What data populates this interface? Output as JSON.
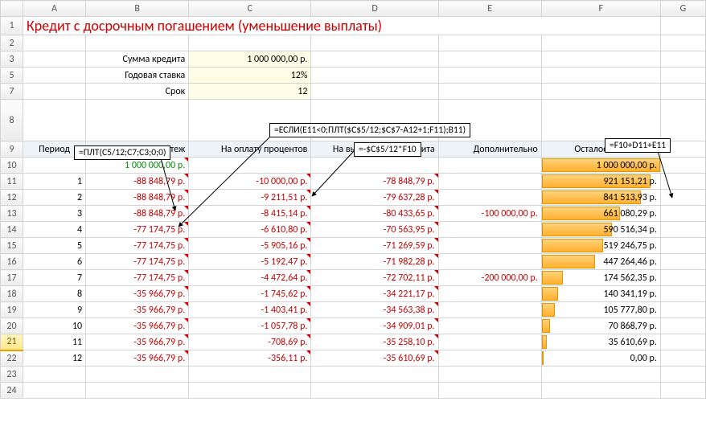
{
  "title": "Кредит с досрочным погашением (уменьшение выплаты)",
  "cols": [
    "A",
    "B",
    "C",
    "D",
    "E",
    "F",
    "G"
  ],
  "params": {
    "sum_label": "Сумма кредита",
    "sum_value": "1 000 000,00 р.",
    "rate_label": "Годовая ставка",
    "rate_value": "12%",
    "term_label": "Срок",
    "term_value": "12"
  },
  "headers": {
    "period": "Период",
    "payment": "Платеж",
    "interest": "На оплату процентов",
    "principal": "На выплату тела кредита",
    "extra": "Дополнительно",
    "remaining": "Осталось выплатить"
  },
  "initial": {
    "payment": "1 000 000,00 р.",
    "remaining": "1 000 000,00 р."
  },
  "rows": [
    {
      "n": "1",
      "pay": "-88 848,79 р.",
      "int": "-10 000,00 р.",
      "pri": "-78 848,79 р.",
      "ext": "",
      "rem": "921 151,21 р.",
      "bar": 0.921
    },
    {
      "n": "2",
      "pay": "-88 848,79 р.",
      "int": "-9 211,51 р.",
      "pri": "-79 637,28 р.",
      "ext": "",
      "rem": "841 513,93 р.",
      "bar": 0.842
    },
    {
      "n": "3",
      "pay": "-88 848,79 р.",
      "int": "-8 415,14 р.",
      "pri": "-80 433,65 р.",
      "ext": "-100 000,00 р.",
      "rem": "661 080,29 р.",
      "bar": 0.661
    },
    {
      "n": "4",
      "pay": "-77 174,75 р.",
      "int": "-6 610,80 р.",
      "pri": "-70 563,95 р.",
      "ext": "",
      "rem": "590 516,34 р.",
      "bar": 0.591
    },
    {
      "n": "5",
      "pay": "-77 174,75 р.",
      "int": "-5 905,16 р.",
      "pri": "-71 269,59 р.",
      "ext": "",
      "rem": "519 246,75 р.",
      "bar": 0.519
    },
    {
      "n": "6",
      "pay": "-77 174,75 р.",
      "int": "-5 192,47 р.",
      "pri": "-71 982,28 р.",
      "ext": "",
      "rem": "447 264,46 р.",
      "bar": 0.447
    },
    {
      "n": "7",
      "pay": "-77 174,75 р.",
      "int": "-4 472,64 р.",
      "pri": "-72 702,11 р.",
      "ext": "-200 000,00 р.",
      "rem": "174 562,35 р.",
      "bar": 0.175
    },
    {
      "n": "8",
      "pay": "-35 966,79 р.",
      "int": "-1 745,62 р.",
      "pri": "-34 221,17 р.",
      "ext": "",
      "rem": "140 341,19 р.",
      "bar": 0.14
    },
    {
      "n": "9",
      "pay": "-35 966,79 р.",
      "int": "-1 403,41 р.",
      "pri": "-34 563,38 р.",
      "ext": "",
      "rem": "105 777,80 р.",
      "bar": 0.106
    },
    {
      "n": "10",
      "pay": "-35 966,79 р.",
      "int": "-1 057,78 р.",
      "pri": "-34 909,01 р.",
      "ext": "",
      "rem": "70 868,79 р.",
      "bar": 0.071
    },
    {
      "n": "11",
      "pay": "-35 966,79 р.",
      "int": "-708,69 р.",
      "pri": "-35 258,10 р.",
      "ext": "",
      "rem": "35 610,69 р.",
      "bar": 0.036
    },
    {
      "n": "12",
      "pay": "-35 966,79 р.",
      "int": "-356,11 р.",
      "pri": "-35 610,69 р.",
      "ext": "",
      "rem": "0,00 р.",
      "bar": 0.0
    }
  ],
  "formulas": {
    "b11": "=ПЛТ(С5/12;С7;С3;0;0)",
    "b12": "=ЕСЛИ(E11<0;ПЛТ($C$5/12;$C$7-A12+1;F11);B11)",
    "c11": "=-$C$5/12*F10",
    "f11": "=F10+D11+E11"
  },
  "selected_row": "21",
  "colors": {
    "title": "#cc0000",
    "neg": "#cc0000",
    "green": "#008a00",
    "input_bg": "#fffde6",
    "hdr_bg": "#eef3f8",
    "bar_start": "#ffd27a",
    "bar_end": "#ffb030",
    "grid": "#d4d4d4"
  }
}
